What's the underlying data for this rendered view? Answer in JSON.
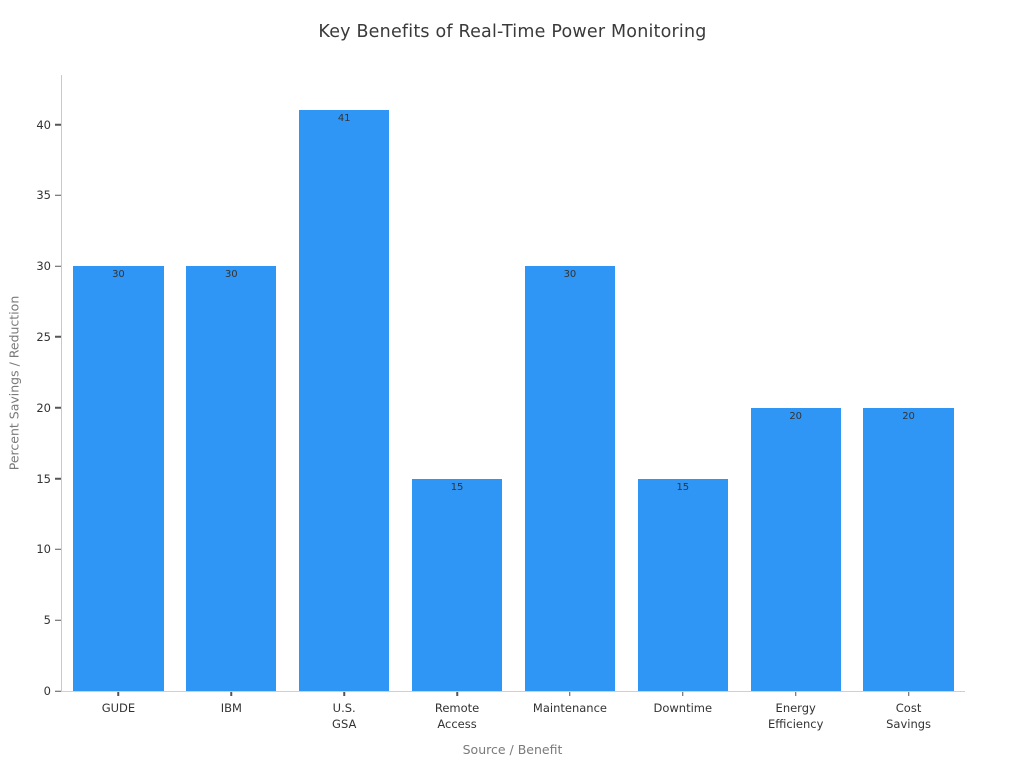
{
  "page": {
    "background_color": "#ffffff"
  },
  "chart_data": {
    "type": "bar",
    "title": "Key Benefits of Real-Time Power Monitoring",
    "xlabel": "Source / Benefit",
    "ylabel": "Percent Savings / Reduction",
    "categories": [
      "GUDE",
      "IBM",
      "U.S. GSA",
      "Remote Access",
      "Maintenance",
      "Downtime",
      "Energy Efficiency",
      "Cost Savings"
    ],
    "values": [
      30,
      30,
      41,
      15,
      30,
      15,
      20,
      20
    ],
    "value_labels_shown": true,
    "bar_color": "#2F96F5",
    "ylim": [
      0,
      43.5
    ],
    "yticks": [
      0,
      5,
      10,
      15,
      20,
      25,
      30,
      35,
      40
    ],
    "grid": false,
    "legend": "none"
  }
}
